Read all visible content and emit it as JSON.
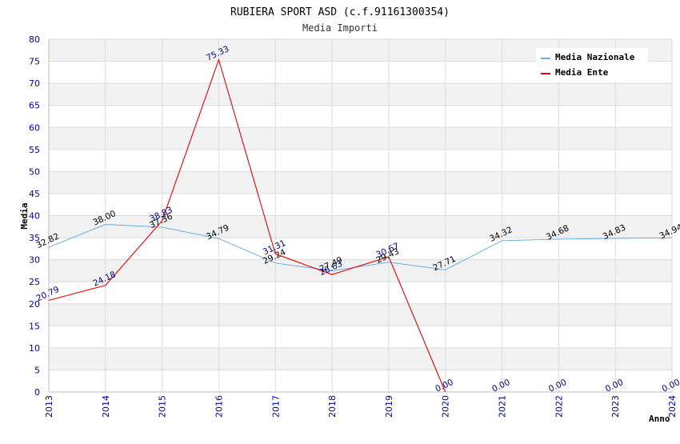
{
  "chart_data": {
    "type": "line",
    "title": "RUBIERA SPORT ASD (c.f.91161300354)",
    "subtitle": "Media Importi",
    "xlabel": "Anno",
    "ylabel": "Media",
    "ylim": [
      0,
      80
    ],
    "ytick_step": 5,
    "grid": true,
    "legend_position": "top-right",
    "categories": [
      "2013",
      "2014",
      "2015",
      "2016",
      "2017",
      "2018",
      "2019",
      "2020",
      "2021",
      "2022",
      "2023",
      "2024"
    ],
    "series": [
      {
        "name": "Media Nazionale",
        "color": "#6aaee6",
        "values": [
          32.82,
          38.0,
          37.36,
          34.79,
          29.24,
          27.49,
          29.43,
          27.71,
          34.32,
          34.68,
          34.83,
          34.94
        ],
        "labels": [
          "32.82",
          "38.00",
          "37.36",
          "34.79",
          "29.24",
          "27.49",
          "29.43",
          "27.71",
          "34.32",
          "34.68",
          "34.83",
          "34.94"
        ]
      },
      {
        "name": "Media Ente",
        "color": "#ee0000",
        "values": [
          20.79,
          24.18,
          38.83,
          75.33,
          31.31,
          26.63,
          30.67,
          0.0,
          null,
          null,
          null,
          null
        ],
        "labels": [
          "20.79",
          "24.18",
          "38.83",
          "75.33",
          "31.31",
          "26.63",
          "30.67",
          "0.00",
          "0.00",
          "0.00",
          "0.00",
          "0.00"
        ]
      }
    ]
  }
}
